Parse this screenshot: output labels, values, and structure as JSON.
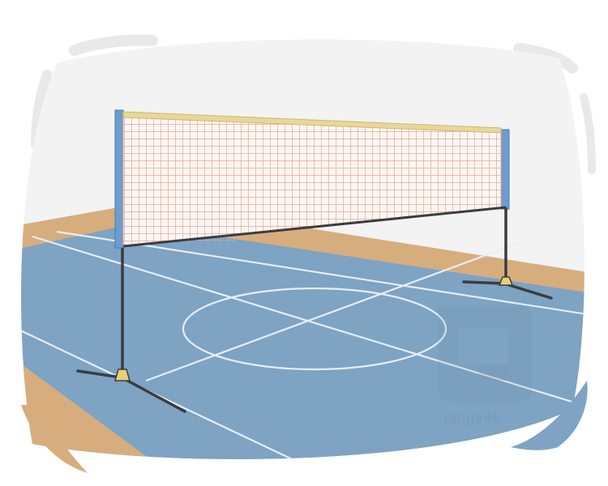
{
  "illustration": {
    "subject": "badminton-net-on-court",
    "colors": {
      "wall": "#f3f3f3",
      "floor_wood": "#d7ad7e",
      "court": "#7ea3c3",
      "court_lines": "#e6eef5",
      "net_mesh": "#e7b8a8",
      "net_tape": "#e9d79a",
      "net_post": "#6f9ccc",
      "stand": "#3a3d40",
      "stand_base": "#e6d07a",
      "frame_stroke": "#e9e9e9",
      "watermark": "#6f8fa8"
    },
    "watermark": {
      "brand_text": "langeek",
      "glyph": "letter-g-logo"
    }
  }
}
